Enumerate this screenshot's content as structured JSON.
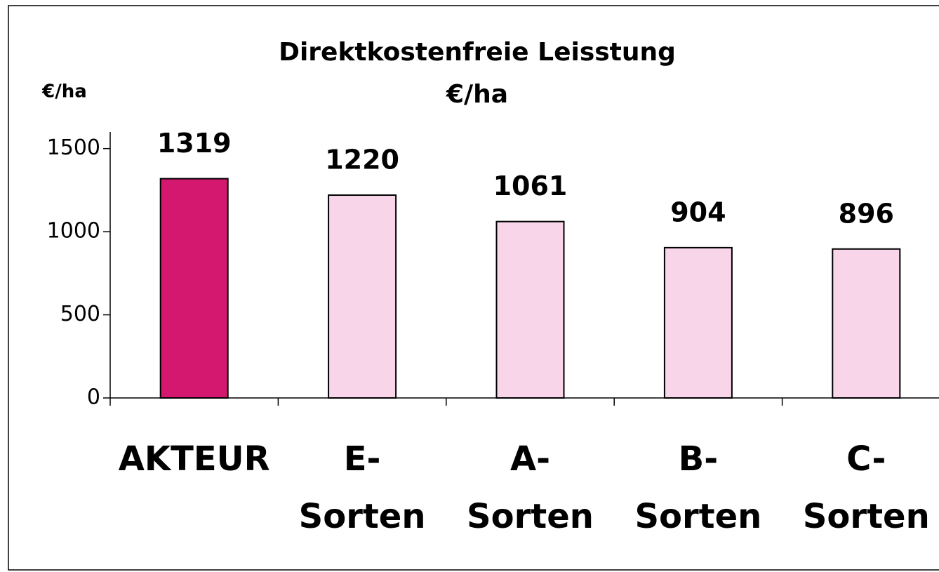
{
  "chart_data": {
    "type": "bar",
    "title": "Direktkostenfreie Leisstung",
    "subtitle": "€/ha",
    "y_label": "€/ha",
    "categories": [
      [
        "AKTEUR"
      ],
      [
        "E-",
        "Sorten"
      ],
      [
        "A-",
        "Sorten"
      ],
      [
        "B-",
        "Sorten"
      ],
      [
        "C-",
        "Sorten"
      ]
    ],
    "values": [
      1319,
      1220,
      1061,
      904,
      896
    ],
    "colors": [
      "#d4186f",
      "#f8d5e8",
      "#f8d5e8",
      "#f8d5e8",
      "#f8d5e8"
    ],
    "ylim": [
      0,
      1600
    ],
    "yticks": [
      0,
      500,
      1000,
      1500
    ]
  }
}
